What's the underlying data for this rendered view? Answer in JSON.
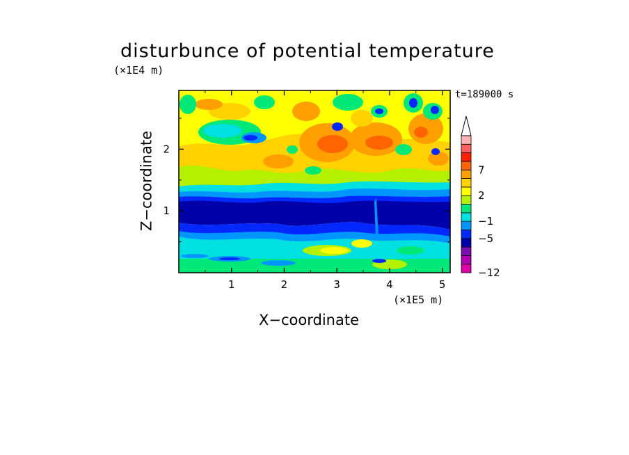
{
  "chart_data": {
    "type": "heatmap",
    "title": "disturbunce of potential temperature",
    "xlabel": "X−coordinate",
    "ylabel": "Z−coordinate",
    "x_unit": "(×1E5 m)",
    "y_unit": "(×1E4 m)",
    "time_label": "t=189000 s",
    "xlim": [
      0,
      5.15
    ],
    "ylim": [
      0,
      2.95
    ],
    "x_ticks": [
      1,
      2,
      3,
      4,
      5
    ],
    "y_ticks": [
      1,
      2
    ],
    "colorbar": {
      "tick_labels": [
        "−12",
        "−5",
        "−1",
        "2",
        "7"
      ],
      "colors": [
        "#e000a8",
        "#b000b0",
        "#7a10b0",
        "#0000a8",
        "#0028ff",
        "#0096ff",
        "#00e0e0",
        "#00e878",
        "#b4f000",
        "#ffff00",
        "#ffd200",
        "#ffa000",
        "#ff6400",
        "#ff2000",
        "#ff6060",
        "#ffb0b0"
      ],
      "extend": "max"
    },
    "bands": [
      {
        "z_range": [
          0.0,
          0.35
        ],
        "field": "cyan-green with blue streaks"
      },
      {
        "z_range": [
          0.35,
          0.75
        ],
        "field": "cyan/blue with yellow-orange patches"
      },
      {
        "z_range": [
          0.75,
          1.3
        ],
        "field": "dark blue core (about −5)"
      },
      {
        "z_range": [
          1.3,
          1.55
        ],
        "field": "blue/cyan transition"
      },
      {
        "z_range": [
          1.55,
          2.95
        ],
        "field": "yellow-orange wave field with green and blue cells"
      }
    ]
  }
}
